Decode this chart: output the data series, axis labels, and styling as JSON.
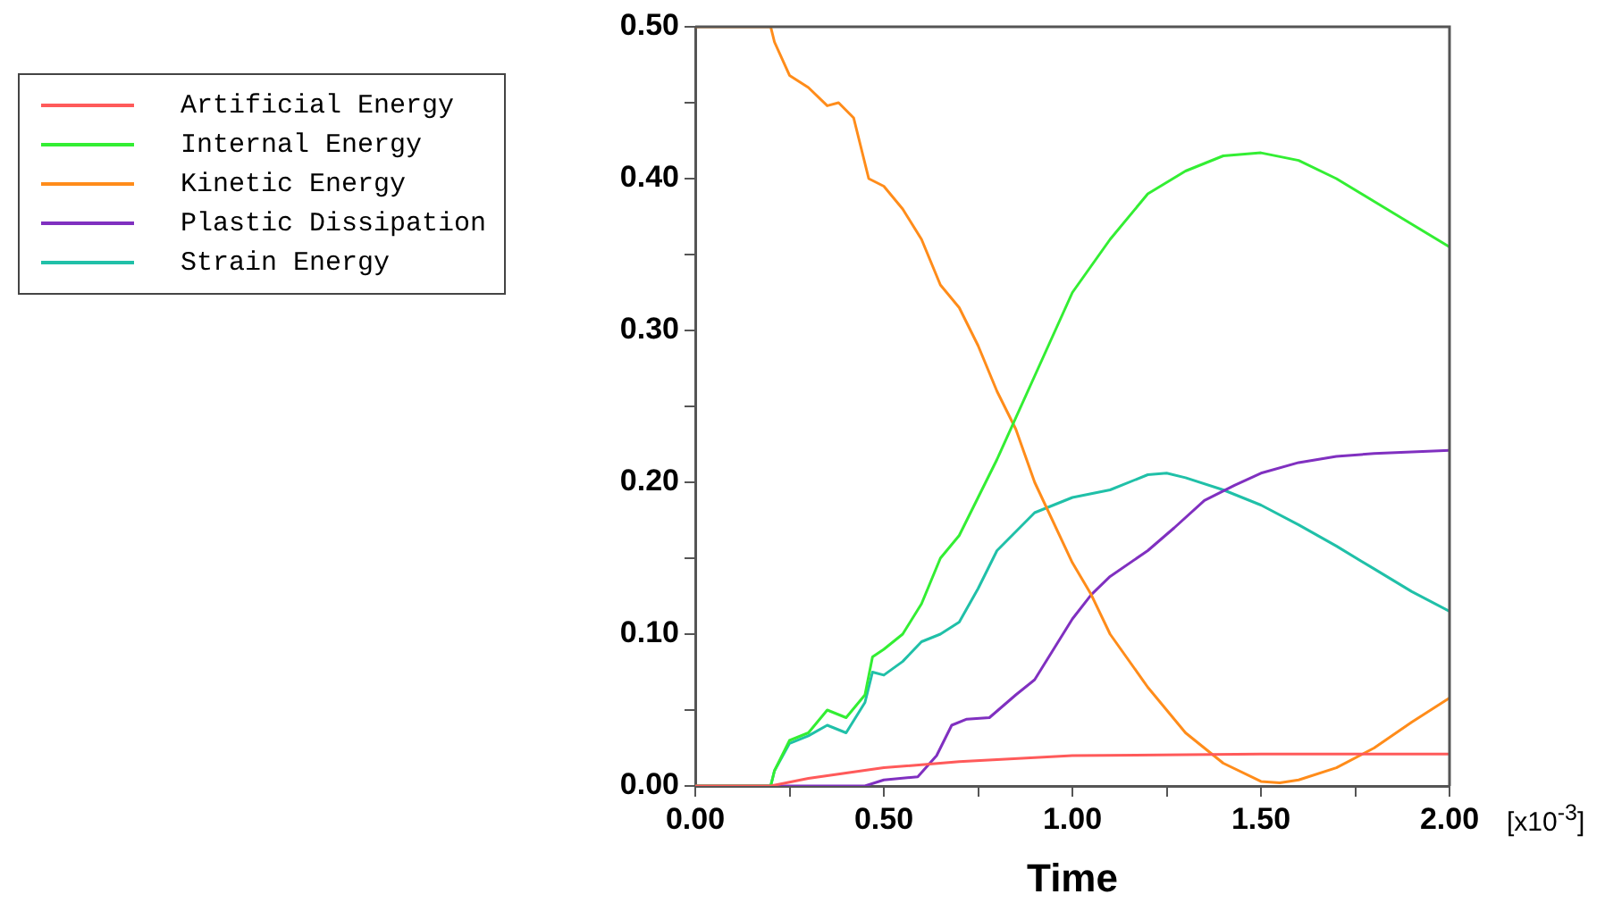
{
  "chart_data": {
    "type": "line",
    "xlabel": "Time",
    "annotations": [
      "[x10$^{-3}$]"
    ],
    "xlim": [
      0,
      2
    ],
    "ylim": [
      0,
      0.5
    ],
    "xticks": [
      {
        "value": 0,
        "label": "0.00"
      },
      {
        "value": 0.25,
        "label": null
      },
      {
        "value": 0.5,
        "label": "0.50"
      },
      {
        "value": 0.75,
        "label": null
      },
      {
        "value": 1,
        "label": "1.00"
      },
      {
        "value": 1.25,
        "label": null
      },
      {
        "value": 1.5,
        "label": "1.50"
      },
      {
        "value": 1.75,
        "label": null
      },
      {
        "value": 2,
        "label": "2.00"
      }
    ],
    "yticks": [
      {
        "value": 0,
        "label": "0.00"
      },
      {
        "value": 0.05,
        "label": null
      },
      {
        "value": 0.1,
        "label": "0.10"
      },
      {
        "value": 0.15,
        "label": null
      },
      {
        "value": 0.2,
        "label": "0.20"
      },
      {
        "value": 0.25,
        "label": null
      },
      {
        "value": 0.3,
        "label": "0.30"
      },
      {
        "value": 0.35,
        "label": null
      },
      {
        "value": 0.4,
        "label": "0.40"
      },
      {
        "value": 0.45,
        "label": null
      },
      {
        "value": 0.5,
        "label": "0.50"
      }
    ],
    "legend": "top left",
    "marker": "none",
    "line_style": "solid",
    "series": [
      {
        "name": "Artificial Energy",
        "color": "#ff5a5a",
        "x": [
          0,
          0.2,
          0.3,
          0.5,
          0.7,
          1.0,
          1.5,
          2.0
        ],
        "values": [
          0,
          0,
          0.005,
          0.012,
          0.016,
          0.02,
          0.021,
          0.021
        ]
      },
      {
        "name": "Internal Energy",
        "color": "#33ee33",
        "x": [
          0,
          0.2,
          0.21,
          0.25,
          0.3,
          0.35,
          0.4,
          0.45,
          0.47,
          0.5,
          0.55,
          0.6,
          0.65,
          0.7,
          0.75,
          0.8,
          0.9,
          1.0,
          1.1,
          1.2,
          1.3,
          1.4,
          1.5,
          1.6,
          1.7,
          1.8,
          1.9,
          2.0
        ],
        "values": [
          0,
          0,
          0.01,
          0.03,
          0.035,
          0.05,
          0.045,
          0.06,
          0.085,
          0.09,
          0.1,
          0.12,
          0.15,
          0.165,
          0.19,
          0.215,
          0.27,
          0.325,
          0.36,
          0.39,
          0.405,
          0.415,
          0.417,
          0.412,
          0.4,
          0.385,
          0.37,
          0.355
        ]
      },
      {
        "name": "Kinetic Energy",
        "color": "#ff8c1a",
        "x": [
          0,
          0.2,
          0.21,
          0.25,
          0.3,
          0.35,
          0.38,
          0.42,
          0.46,
          0.5,
          0.55,
          0.6,
          0.65,
          0.7,
          0.75,
          0.8,
          0.85,
          0.9,
          1.0,
          1.05,
          1.1,
          1.2,
          1.3,
          1.4,
          1.5,
          1.55,
          1.6,
          1.7,
          1.8,
          1.9,
          2.0
        ],
        "values": [
          0.5,
          0.5,
          0.49,
          0.468,
          0.46,
          0.448,
          0.45,
          0.44,
          0.4,
          0.395,
          0.38,
          0.36,
          0.33,
          0.315,
          0.29,
          0.26,
          0.235,
          0.2,
          0.147,
          0.126,
          0.1,
          0.065,
          0.035,
          0.015,
          0.003,
          0.002,
          0.004,
          0.012,
          0.025,
          0.042,
          0.058
        ]
      },
      {
        "name": "Plastic Dissipation",
        "color": "#8030c0",
        "x": [
          0,
          0.45,
          0.5,
          0.59,
          0.64,
          0.68,
          0.72,
          0.78,
          0.85,
          0.9,
          0.95,
          1.0,
          1.05,
          1.1,
          1.2,
          1.27,
          1.35,
          1.43,
          1.5,
          1.6,
          1.7,
          1.8,
          1.9,
          2.0
        ],
        "values": [
          0,
          0,
          0.004,
          0.006,
          0.02,
          0.04,
          0.044,
          0.045,
          0.06,
          0.07,
          0.09,
          0.11,
          0.126,
          0.138,
          0.155,
          0.17,
          0.188,
          0.198,
          0.206,
          0.213,
          0.217,
          0.219,
          0.22,
          0.221
        ]
      },
      {
        "name": "Strain Energy",
        "color": "#20c0a8",
        "x": [
          0,
          0.2,
          0.21,
          0.25,
          0.3,
          0.35,
          0.4,
          0.45,
          0.47,
          0.5,
          0.55,
          0.6,
          0.65,
          0.7,
          0.75,
          0.8,
          0.9,
          1.0,
          1.1,
          1.2,
          1.25,
          1.3,
          1.4,
          1.5,
          1.6,
          1.7,
          1.8,
          1.9,
          2.0
        ],
        "values": [
          0,
          0,
          0.01,
          0.028,
          0.033,
          0.04,
          0.035,
          0.055,
          0.075,
          0.073,
          0.082,
          0.095,
          0.1,
          0.108,
          0.13,
          0.155,
          0.18,
          0.19,
          0.195,
          0.205,
          0.206,
          0.203,
          0.195,
          0.185,
          0.172,
          0.158,
          0.143,
          0.128,
          0.115
        ]
      }
    ]
  }
}
